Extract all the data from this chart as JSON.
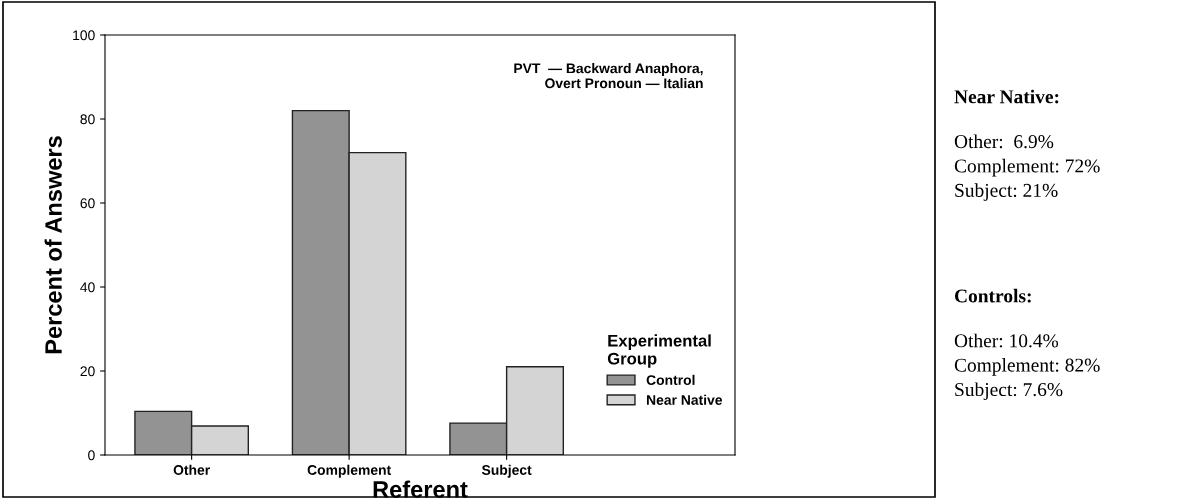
{
  "chart_data": {
    "type": "bar",
    "categories": [
      "Other",
      "Complement",
      "Subject"
    ],
    "series": [
      {
        "name": "Control",
        "color": "#939393",
        "values": [
          10.4,
          82,
          7.6
        ]
      },
      {
        "name": "Near Native",
        "color": "#d4d4d4",
        "values": [
          6.9,
          72,
          21
        ]
      }
    ],
    "xlabel": "Referent",
    "ylabel": "Percent of Answers",
    "legend_title": "Experimental Group",
    "ylim": [
      0,
      100
    ],
    "yticks": [
      0,
      20,
      40,
      60,
      80,
      100
    ],
    "grid": false,
    "legend": "right",
    "annotations": [
      "PVT  — Backward Anaphora,\nOvert Pronoun — Italian",
      "Near Native:",
      "Other:  6.9%\nComplement: 72%\nSubject: 21%",
      "Controls:",
      "Other: 10.4%\nComplement: 82%\nSubject: 7.6%"
    ]
  }
}
